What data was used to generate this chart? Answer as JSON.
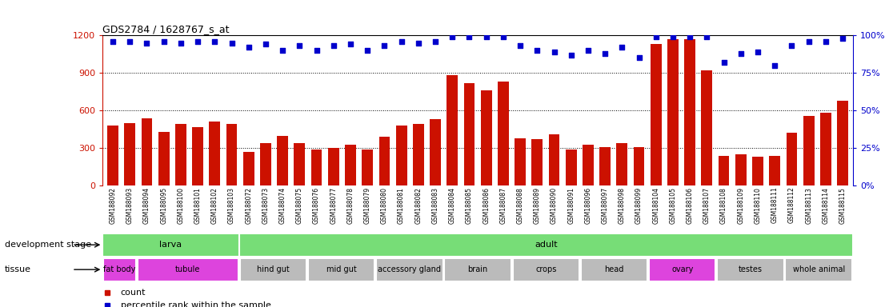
{
  "title": "GDS2784 / 1628767_s_at",
  "samples": [
    "GSM188092",
    "GSM188093",
    "GSM188094",
    "GSM188095",
    "GSM188100",
    "GSM188101",
    "GSM188102",
    "GSM188103",
    "GSM188072",
    "GSM188073",
    "GSM188074",
    "GSM188075",
    "GSM188076",
    "GSM188077",
    "GSM188078",
    "GSM188079",
    "GSM188080",
    "GSM188081",
    "GSM188082",
    "GSM188083",
    "GSM188084",
    "GSM188085",
    "GSM188086",
    "GSM188087",
    "GSM188088",
    "GSM188089",
    "GSM188090",
    "GSM188091",
    "GSM188096",
    "GSM188097",
    "GSM188098",
    "GSM188099",
    "GSM188104",
    "GSM188105",
    "GSM188106",
    "GSM188107",
    "GSM188108",
    "GSM188109",
    "GSM188110",
    "GSM188111",
    "GSM188112",
    "GSM188113",
    "GSM188114",
    "GSM188115"
  ],
  "counts": [
    480,
    500,
    540,
    430,
    490,
    470,
    510,
    490,
    270,
    340,
    400,
    340,
    290,
    300,
    330,
    290,
    390,
    480,
    490,
    530,
    880,
    820,
    760,
    830,
    380,
    370,
    410,
    290,
    330,
    310,
    340,
    310,
    1130,
    1170,
    1170,
    920,
    240,
    250,
    230,
    240,
    420,
    560,
    580,
    680
  ],
  "percentiles": [
    96,
    96,
    95,
    96,
    95,
    96,
    96,
    95,
    92,
    94,
    90,
    93,
    90,
    93,
    94,
    90,
    93,
    96,
    95,
    96,
    99,
    99,
    99,
    99,
    93,
    90,
    89,
    87,
    90,
    88,
    92,
    85,
    99,
    99,
    99,
    99,
    82,
    88,
    89,
    80,
    93,
    96,
    96,
    98
  ],
  "ylim_left": [
    0,
    1200
  ],
  "ylim_right": [
    0,
    100
  ],
  "yticks_left": [
    0,
    300,
    600,
    900,
    1200
  ],
  "yticks_right": [
    0,
    25,
    50,
    75,
    100
  ],
  "bar_color": "#cc1100",
  "dot_color": "#0000cc",
  "dev_groups": [
    {
      "label": "larva",
      "start": 0,
      "end": 8,
      "color": "#77dd77"
    },
    {
      "label": "adult",
      "start": 8,
      "end": 44,
      "color": "#77dd77"
    }
  ],
  "tissue_groups": [
    {
      "label": "fat body",
      "start": 0,
      "end": 2,
      "color": "#dd44dd"
    },
    {
      "label": "tubule",
      "start": 2,
      "end": 8,
      "color": "#dd44dd"
    },
    {
      "label": "hind gut",
      "start": 8,
      "end": 12,
      "color": "#bbbbbb"
    },
    {
      "label": "mid gut",
      "start": 12,
      "end": 16,
      "color": "#bbbbbb"
    },
    {
      "label": "accessory gland",
      "start": 16,
      "end": 20,
      "color": "#bbbbbb"
    },
    {
      "label": "brain",
      "start": 20,
      "end": 24,
      "color": "#bbbbbb"
    },
    {
      "label": "crops",
      "start": 24,
      "end": 28,
      "color": "#bbbbbb"
    },
    {
      "label": "head",
      "start": 28,
      "end": 32,
      "color": "#bbbbbb"
    },
    {
      "label": "ovary",
      "start": 32,
      "end": 36,
      "color": "#dd44dd"
    },
    {
      "label": "testes",
      "start": 36,
      "end": 40,
      "color": "#bbbbbb"
    },
    {
      "label": "whole animal",
      "start": 40,
      "end": 44,
      "color": "#bbbbbb"
    }
  ],
  "grid_lines": [
    300,
    600,
    900
  ],
  "legend_count_label": "count",
  "legend_pct_label": "percentile rank within the sample",
  "dev_stage_label": "development stage",
  "tissue_label": "tissue",
  "xticklabel_bg": "#d8d8d8"
}
